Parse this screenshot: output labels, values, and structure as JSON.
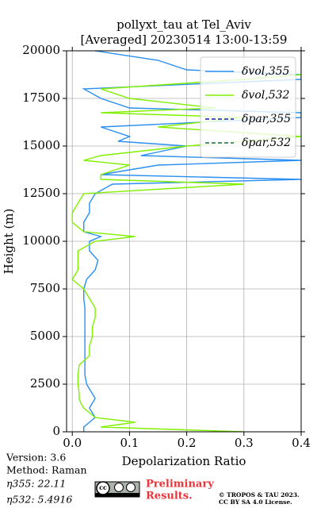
{
  "chart_data": {
    "type": "line",
    "title": "pollyxt_tau at Tel_Aviv",
    "subtitle": "[Averaged] 20230514 13:00-13:59",
    "x_label": "Depolarization Ratio",
    "y_label": "Height (m)",
    "y": [
      0,
      250,
      500,
      750,
      1000,
      1250,
      1500,
      1750,
      2000,
      2500,
      3000,
      3500,
      4000,
      4500,
      5000,
      5500,
      6000,
      6500,
      7000,
      7500,
      8000,
      8500,
      9000,
      9500,
      10000,
      10250,
      10500,
      11000,
      11500,
      12000,
      12500,
      13000,
      13250,
      13500,
      14000,
      14250,
      14500,
      15000,
      15250,
      15500,
      16000,
      16500,
      16750,
      17000,
      17500,
      18000,
      18500,
      18750,
      19000,
      19500,
      20000
    ],
    "series": [
      {
        "name": "δvol,355",
        "color": "#2a8ff0",
        "linestyle": "solid",
        "values": [
          0.02,
          0.02,
          0.03,
          0.04,
          0.035,
          0.03,
          0.035,
          0.04,
          0.035,
          0.025,
          0.022,
          0.022,
          0.022,
          0.022,
          0.022,
          0.022,
          0.022,
          0.022,
          0.02,
          0.02,
          0.025,
          0.04,
          0.045,
          0.03,
          0.03,
          0.05,
          0.02,
          0.02,
          0.03,
          0.03,
          0.04,
          0.07,
          0.4,
          0.05,
          0.15,
          0.4,
          0.12,
          0.2,
          0.08,
          0.1,
          0.05,
          0.4,
          0.4,
          0.1,
          0.05,
          0.02,
          0.4,
          0.4,
          0.2,
          0.15,
          0.04
        ]
      },
      {
        "name": "δvol,532",
        "color": "#80f000",
        "linestyle": "solid",
        "values": [
          0.3,
          0.05,
          0.11,
          0.04,
          0.03,
          0.02,
          0.015,
          0.012,
          0.012,
          0.01,
          0.01,
          0.012,
          0.03,
          0.03,
          0.035,
          0.035,
          0.04,
          0.04,
          0.03,
          0.02,
          0.0,
          0.01,
          0.01,
          0.01,
          0.04,
          0.11,
          0.02,
          0.0,
          0.0,
          0.01,
          0.02,
          0.3,
          0.05,
          0.05,
          0.1,
          0.02,
          0.05,
          0.2,
          0.3,
          0.4,
          0.15,
          0.3,
          0.05,
          0.25,
          0.1,
          0.05,
          0.3,
          0.4,
          0.4,
          0.4,
          0.4
        ]
      },
      {
        "name": "δpar,355",
        "color": "#0a1fa8",
        "linestyle": "dashed",
        "values": [
          null,
          null,
          null,
          null,
          null,
          null,
          null,
          null,
          null,
          null,
          null,
          null,
          null,
          null,
          null,
          null,
          null,
          null,
          null,
          null,
          null,
          null,
          null,
          null,
          null,
          null,
          null,
          null,
          null,
          null,
          null,
          null,
          null,
          null,
          null,
          null,
          null,
          null,
          null,
          null,
          null,
          null,
          null,
          null,
          null,
          null,
          null,
          null,
          null,
          null,
          null
        ]
      },
      {
        "name": "δpar,532",
        "color": "#1a6b5c",
        "linestyle": "dashed",
        "values": [
          null,
          null,
          null,
          null,
          null,
          null,
          null,
          null,
          null,
          null,
          null,
          null,
          null,
          null,
          null,
          null,
          null,
          null,
          null,
          null,
          null,
          null,
          null,
          null,
          null,
          null,
          null,
          null,
          null,
          null,
          null,
          null,
          null,
          null,
          null,
          null,
          null,
          null,
          null,
          null,
          null,
          null,
          null,
          null,
          null,
          null,
          null,
          null,
          null,
          null,
          null
        ]
      }
    ],
    "xlim": [
      -0.01,
      0.4
    ],
    "xticks": [
      {
        "value": 0,
        "label": "0.0"
      },
      0.1,
      0.2,
      0.3,
      0.4
    ],
    "ylim": [
      0,
      20000
    ],
    "yticks": [
      0,
      2500,
      5000,
      7500,
      10000,
      12500,
      15000,
      17500,
      20000
    ],
    "grid": true,
    "legend": "upper right",
    "notes": [
      "Version: 3.6",
      "Method: Raman",
      "η355:  22.11",
      "η532: 5.4916"
    ],
    "preliminary": [
      "Preliminary",
      "Results."
    ],
    "copyright": [
      "© TROPOS & TAU 2023.",
      "CC BY SA 4.0 License."
    ]
  }
}
